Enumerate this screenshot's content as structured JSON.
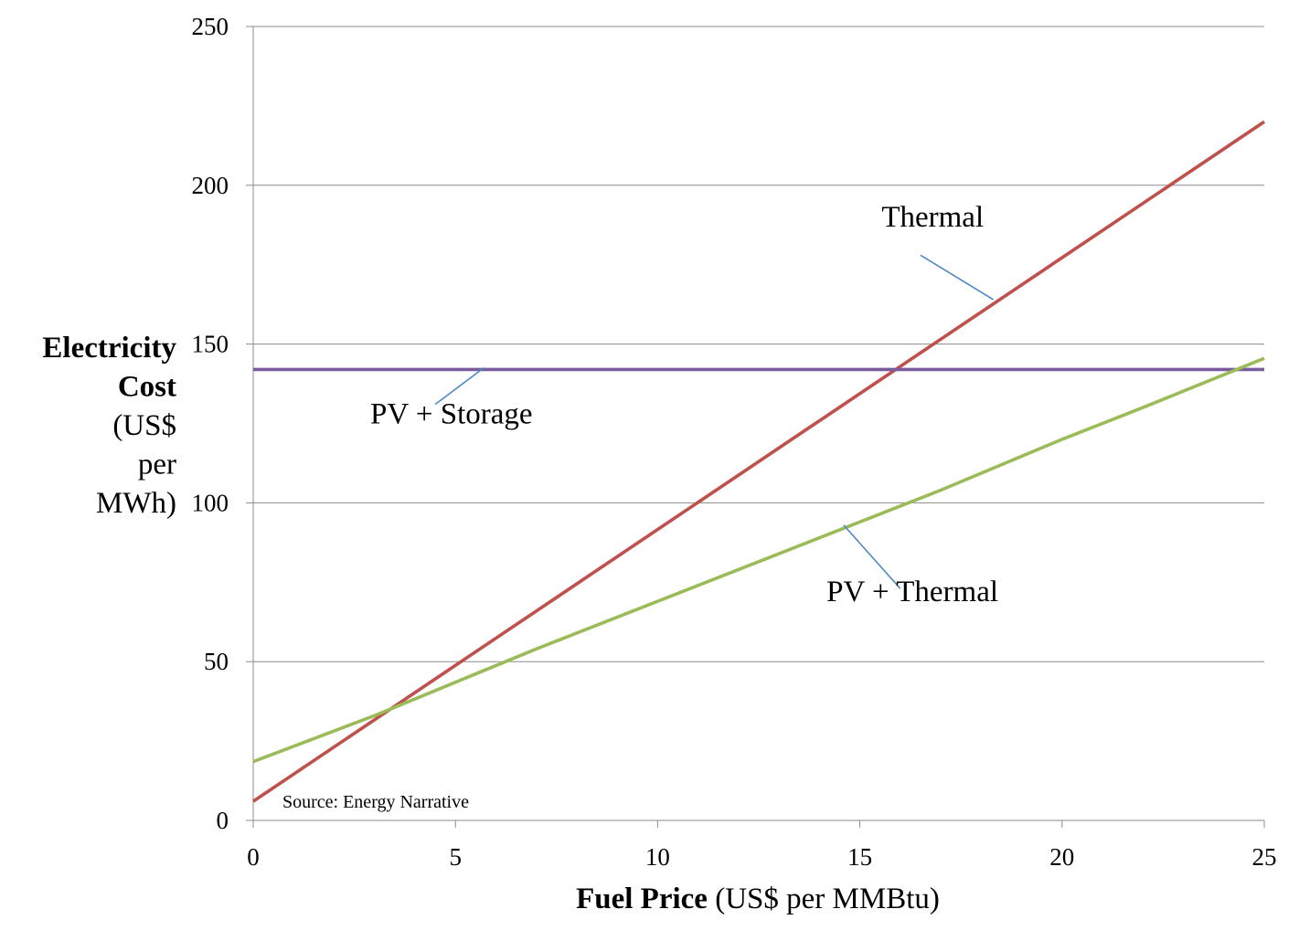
{
  "chart_data": {
    "type": "line",
    "xlabel_bold": "Fuel Price",
    "xlabel_rest": " (US$ per MMBtu)",
    "ylabel_lines": [
      {
        "text": "Electricity",
        "bold": true
      },
      {
        "text": "Cost",
        "bold": true
      },
      {
        "text": "(US$",
        "bold": false
      },
      {
        "text": "per",
        "bold": false
      },
      {
        "text": "MWh)",
        "bold": false
      }
    ],
    "xlim": [
      0,
      25
    ],
    "ylim": [
      0,
      250
    ],
    "xticks": [
      0,
      5,
      10,
      15,
      20,
      25
    ],
    "yticks": [
      0,
      50,
      100,
      150,
      200,
      250
    ],
    "grid": true,
    "source": "Source: Energy Narrative",
    "series": [
      {
        "name": "Thermal",
        "color": "#c0504d",
        "x": [
          0,
          25
        ],
        "y": [
          6,
          220
        ],
        "label_at": [
          16.8,
          187
        ],
        "leader": [
          [
            16.5,
            178
          ],
          [
            18.3,
            164
          ]
        ]
      },
      {
        "name": "PV + Storage",
        "color": "#7a5c9e",
        "x": [
          0,
          25
        ],
        "y": [
          142,
          142
        ],
        "label_at": [
          4.9,
          125
        ],
        "leader": [
          [
            4.5,
            131
          ],
          [
            5.7,
            142.5
          ]
        ]
      },
      {
        "name": "PV + Thermal",
        "color": "#9bbb59",
        "x": [
          0,
          3,
          5,
          7,
          10,
          12,
          15,
          17,
          20,
          22,
          25
        ],
        "y": [
          18.5,
          33,
          43.5,
          54,
          69,
          79,
          94,
          104,
          120,
          130,
          145.5
        ],
        "label_at": [
          16.3,
          69
        ],
        "leader": [
          [
            14.6,
            93
          ],
          [
            16,
            73
          ]
        ]
      }
    ]
  }
}
